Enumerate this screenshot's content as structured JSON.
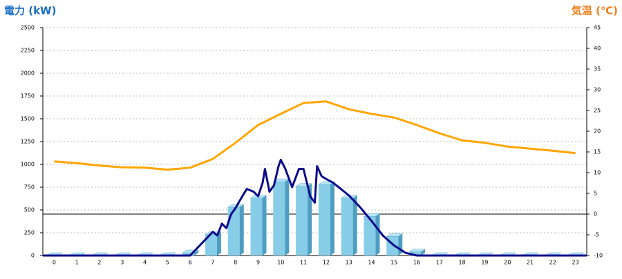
{
  "chart_data": {
    "type": "combo",
    "left_title": "電力 (kW)",
    "right_title": "気温 (℃)",
    "categories": [
      "0",
      "1",
      "2",
      "3",
      "4",
      "5",
      "6",
      "7",
      "8",
      "9",
      "10",
      "11",
      "12",
      "13",
      "14",
      "15",
      "16",
      "17",
      "18",
      "19",
      "20",
      "21",
      "22",
      "23"
    ],
    "xlim": [
      -0.5,
      23.5
    ],
    "ylim": [
      0,
      2500
    ],
    "yticks": [
      0,
      250,
      500,
      750,
      1000,
      1250,
      1500,
      1750,
      2000,
      2250,
      2500
    ],
    "y2lim": [
      -10,
      45
    ],
    "y2ticks": [
      -10,
      -5,
      0,
      5,
      10,
      15,
      20,
      25,
      30,
      35,
      40,
      45
    ],
    "grid": true,
    "series": [
      {
        "type": "bar",
        "color": "#87cde8",
        "values": [
          0,
          0,
          0,
          0,
          0,
          0,
          30,
          230,
          530,
          630,
          810,
          760,
          780,
          630,
          430,
          210,
          40,
          0,
          0,
          0,
          0,
          0,
          0,
          0
        ]
      },
      {
        "type": "line",
        "color": "#0a0a8c",
        "x": [
          -0.5,
          6,
          6.5,
          7,
          7.2,
          7.4,
          7.6,
          7.8,
          8,
          8.3,
          8.5,
          8.8,
          9,
          9.2,
          9.3,
          9.5,
          9.7,
          9.9,
          10,
          10.2,
          10.5,
          10.8,
          11,
          11.3,
          11.5,
          11.6,
          11.8,
          12,
          12.3,
          12.6,
          13,
          13.5,
          14,
          14.5,
          15,
          15.5,
          16,
          23.5
        ],
        "values": [
          0,
          0,
          130,
          260,
          220,
          350,
          300,
          450,
          520,
          650,
          730,
          700,
          650,
          800,
          950,
          700,
          770,
          980,
          1050,
          950,
          750,
          950,
          950,
          650,
          580,
          980,
          870,
          840,
          800,
          740,
          660,
          530,
          380,
          220,
          110,
          30,
          0,
          0
        ]
      },
      {
        "type": "line",
        "axis": "y2",
        "color": "#ffa500",
        "values": [
          12.7,
          12.3,
          11.7,
          11.3,
          11.2,
          10.7,
          11.2,
          13.3,
          17.2,
          21.5,
          24.2,
          26.8,
          27.2,
          25.3,
          24.2,
          23.3,
          21.5,
          19.5,
          17.8,
          17.2,
          16.3,
          15.8,
          15.3,
          14.7
        ]
      }
    ]
  }
}
